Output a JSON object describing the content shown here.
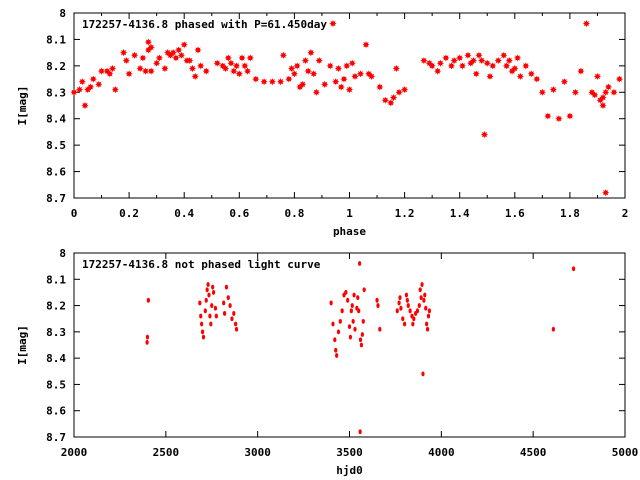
{
  "chart_data": [
    {
      "type": "scatter",
      "title": "172257-4136.8 phased with P=61.450day",
      "xlabel": "phase",
      "ylabel": "I[mag]",
      "xlim": [
        0,
        2
      ],
      "ylim": [
        8.7,
        8.0
      ],
      "y_inverted": true,
      "xticks": [
        "0",
        "0.2",
        "0.4",
        "0.6",
        "0.8",
        "1",
        "1.2",
        "1.4",
        "1.6",
        "1.8",
        "2"
      ],
      "yticks": [
        "8",
        "8.1",
        "8.2",
        "8.3",
        "8.4",
        "8.5",
        "8.6",
        "8.7"
      ],
      "marker_color": "#ff0000",
      "marker": "star",
      "points": [
        [
          0.0,
          8.3
        ],
        [
          0.02,
          8.29
        ],
        [
          0.03,
          8.26
        ],
        [
          0.04,
          8.35
        ],
        [
          0.05,
          8.29
        ],
        [
          0.06,
          8.28
        ],
        [
          0.07,
          8.25
        ],
        [
          0.09,
          8.27
        ],
        [
          0.1,
          8.22
        ],
        [
          0.12,
          8.22
        ],
        [
          0.13,
          8.23
        ],
        [
          0.14,
          8.21
        ],
        [
          0.15,
          8.29
        ],
        [
          0.18,
          8.15
        ],
        [
          0.19,
          8.18
        ],
        [
          0.2,
          8.23
        ],
        [
          0.22,
          8.16
        ],
        [
          0.24,
          8.21
        ],
        [
          0.25,
          8.17
        ],
        [
          0.26,
          8.22
        ],
        [
          0.27,
          8.14
        ],
        [
          0.27,
          8.11
        ],
        [
          0.28,
          8.13
        ],
        [
          0.28,
          8.22
        ],
        [
          0.3,
          8.19
        ],
        [
          0.31,
          8.17
        ],
        [
          0.33,
          8.21
        ],
        [
          0.34,
          8.15
        ],
        [
          0.35,
          8.16
        ],
        [
          0.36,
          8.15
        ],
        [
          0.37,
          8.17
        ],
        [
          0.38,
          8.14
        ],
        [
          0.39,
          8.16
        ],
        [
          0.4,
          8.12
        ],
        [
          0.41,
          8.18
        ],
        [
          0.42,
          8.18
        ],
        [
          0.43,
          8.21
        ],
        [
          0.44,
          8.24
        ],
        [
          0.45,
          8.14
        ],
        [
          0.46,
          8.2
        ],
        [
          0.48,
          8.22
        ],
        [
          0.52,
          8.19
        ],
        [
          0.54,
          8.2
        ],
        [
          0.55,
          8.21
        ],
        [
          0.56,
          8.17
        ],
        [
          0.57,
          8.19
        ],
        [
          0.58,
          8.22
        ],
        [
          0.59,
          8.2
        ],
        [
          0.6,
          8.23
        ],
        [
          0.61,
          8.17
        ],
        [
          0.62,
          8.2
        ],
        [
          0.63,
          8.22
        ],
        [
          0.64,
          8.17
        ],
        [
          0.66,
          8.25
        ],
        [
          0.69,
          8.26
        ],
        [
          0.72,
          8.26
        ],
        [
          0.75,
          8.26
        ],
        [
          0.76,
          8.16
        ],
        [
          0.78,
          8.25
        ],
        [
          0.79,
          8.21
        ],
        [
          0.8,
          8.23
        ],
        [
          0.81,
          8.2
        ],
        [
          0.82,
          8.28
        ],
        [
          0.83,
          8.27
        ],
        [
          0.84,
          8.18
        ],
        [
          0.85,
          8.22
        ],
        [
          0.86,
          8.15
        ],
        [
          0.87,
          8.23
        ],
        [
          0.88,
          8.3
        ],
        [
          0.89,
          8.18
        ],
        [
          0.91,
          8.27
        ],
        [
          0.93,
          8.2
        ],
        [
          0.94,
          8.04
        ],
        [
          0.95,
          8.26
        ],
        [
          0.96,
          8.21
        ],
        [
          0.97,
          8.28
        ],
        [
          0.98,
          8.25
        ],
        [
          0.99,
          8.2
        ],
        [
          1.0,
          8.29
        ],
        [
          1.01,
          8.19
        ],
        [
          1.02,
          8.24
        ],
        [
          1.04,
          8.23
        ],
        [
          1.06,
          8.12
        ],
        [
          1.07,
          8.23
        ],
        [
          1.08,
          8.24
        ],
        [
          1.11,
          8.28
        ],
        [
          1.13,
          8.33
        ],
        [
          1.15,
          8.34
        ],
        [
          1.16,
          8.32
        ],
        [
          1.17,
          8.21
        ],
        [
          1.18,
          8.3
        ],
        [
          1.2,
          8.29
        ],
        [
          1.27,
          8.18
        ],
        [
          1.29,
          8.19
        ],
        [
          1.3,
          8.2
        ],
        [
          1.32,
          8.22
        ],
        [
          1.33,
          8.19
        ],
        [
          1.35,
          8.17
        ],
        [
          1.37,
          8.2
        ],
        [
          1.38,
          8.18
        ],
        [
          1.4,
          8.17
        ],
        [
          1.41,
          8.2
        ],
        [
          1.43,
          8.16
        ],
        [
          1.44,
          8.19
        ],
        [
          1.45,
          8.18
        ],
        [
          1.46,
          8.23
        ],
        [
          1.47,
          8.16
        ],
        [
          1.48,
          8.18
        ],
        [
          1.49,
          8.46
        ],
        [
          1.5,
          8.19
        ],
        [
          1.51,
          8.24
        ],
        [
          1.52,
          8.2
        ],
        [
          1.54,
          8.18
        ],
        [
          1.56,
          8.16
        ],
        [
          1.57,
          8.2
        ],
        [
          1.58,
          8.18
        ],
        [
          1.59,
          8.22
        ],
        [
          1.6,
          8.21
        ],
        [
          1.61,
          8.17
        ],
        [
          1.62,
          8.24
        ],
        [
          1.64,
          8.2
        ],
        [
          1.66,
          8.23
        ],
        [
          1.68,
          8.25
        ],
        [
          1.7,
          8.3
        ],
        [
          1.72,
          8.39
        ],
        [
          1.74,
          8.29
        ],
        [
          1.76,
          8.4
        ],
        [
          1.78,
          8.26
        ],
        [
          1.8,
          8.39
        ],
        [
          1.82,
          8.3
        ],
        [
          1.84,
          8.22
        ],
        [
          1.86,
          8.04
        ],
        [
          1.88,
          8.3
        ],
        [
          1.89,
          8.31
        ],
        [
          1.9,
          8.24
        ],
        [
          1.91,
          8.33
        ],
        [
          1.92,
          8.32
        ],
        [
          1.92,
          8.35
        ],
        [
          1.93,
          8.3
        ],
        [
          1.93,
          8.68
        ],
        [
          1.94,
          8.28
        ],
        [
          1.96,
          8.3
        ],
        [
          1.98,
          8.25
        ]
      ]
    },
    {
      "type": "scatter",
      "title": "172257-4136.8 not phased light curve",
      "xlabel": "hjd0",
      "ylabel": "I[mag]",
      "xlim": [
        2000,
        5000
      ],
      "ylim": [
        8.7,
        8.0
      ],
      "y_inverted": true,
      "xticks": [
        "2000",
        "2500",
        "3000",
        "3500",
        "4000",
        "4500",
        "5000"
      ],
      "yticks": [
        "8",
        "8.1",
        "8.2",
        "8.3",
        "8.4",
        "8.5",
        "8.6",
        "8.7"
      ],
      "marker_color": "#ff0000",
      "marker": "dot",
      "points": [
        [
          2398,
          8.34
        ],
        [
          2400,
          8.32
        ],
        [
          2405,
          8.18
        ],
        [
          2685,
          8.19
        ],
        [
          2690,
          8.24
        ],
        [
          2695,
          8.27
        ],
        [
          2700,
          8.3
        ],
        [
          2705,
          8.32
        ],
        [
          2715,
          8.22
        ],
        [
          2720,
          8.18
        ],
        [
          2725,
          8.14
        ],
        [
          2730,
          8.12
        ],
        [
          2735,
          8.16
        ],
        [
          2740,
          8.24
        ],
        [
          2745,
          8.27
        ],
        [
          2750,
          8.2
        ],
        [
          2755,
          8.13
        ],
        [
          2760,
          8.15
        ],
        [
          2770,
          8.21
        ],
        [
          2775,
          8.24
        ],
        [
          2815,
          8.19
        ],
        [
          2820,
          8.23
        ],
        [
          2830,
          8.13
        ],
        [
          2840,
          8.17
        ],
        [
          2850,
          8.2
        ],
        [
          2860,
          8.25
        ],
        [
          2870,
          8.23
        ],
        [
          2880,
          8.27
        ],
        [
          2885,
          8.29
        ],
        [
          3400,
          8.19
        ],
        [
          3410,
          8.27
        ],
        [
          3420,
          8.33
        ],
        [
          3425,
          8.37
        ],
        [
          3430,
          8.39
        ],
        [
          3440,
          8.3
        ],
        [
          3450,
          8.26
        ],
        [
          3460,
          8.22
        ],
        [
          3470,
          8.16
        ],
        [
          3480,
          8.15
        ],
        [
          3490,
          8.18
        ],
        [
          3500,
          8.28
        ],
        [
          3505,
          8.32
        ],
        [
          3510,
          8.22
        ],
        [
          3515,
          8.2
        ],
        [
          3520,
          8.26
        ],
        [
          3525,
          8.16
        ],
        [
          3530,
          8.29
        ],
        [
          3540,
          8.21
        ],
        [
          3545,
          8.17
        ],
        [
          3550,
          8.22
        ],
        [
          3555,
          8.04
        ],
        [
          3558,
          8.68
        ],
        [
          3560,
          8.33
        ],
        [
          3565,
          8.35
        ],
        [
          3570,
          8.31
        ],
        [
          3575,
          8.26
        ],
        [
          3580,
          8.14
        ],
        [
          3650,
          8.18
        ],
        [
          3655,
          8.2
        ],
        [
          3665,
          8.29
        ],
        [
          3760,
          8.22
        ],
        [
          3770,
          8.19
        ],
        [
          3775,
          8.17
        ],
        [
          3780,
          8.21
        ],
        [
          3790,
          8.25
        ],
        [
          3800,
          8.27
        ],
        [
          3810,
          8.16
        ],
        [
          3815,
          8.18
        ],
        [
          3820,
          8.2
        ],
        [
          3830,
          8.22
        ],
        [
          3840,
          8.24
        ],
        [
          3845,
          8.27
        ],
        [
          3850,
          8.25
        ],
        [
          3860,
          8.23
        ],
        [
          3870,
          8.22
        ],
        [
          3880,
          8.2
        ],
        [
          3885,
          8.14
        ],
        [
          3890,
          8.17
        ],
        [
          3895,
          8.12
        ],
        [
          3900,
          8.46
        ],
        [
          3905,
          8.18
        ],
        [
          3910,
          8.16
        ],
        [
          3915,
          8.21
        ],
        [
          3920,
          8.27
        ],
        [
          3925,
          8.29
        ],
        [
          3930,
          8.24
        ],
        [
          3935,
          8.22
        ],
        [
          4610,
          8.29
        ],
        [
          4720,
          8.06
        ]
      ]
    }
  ]
}
